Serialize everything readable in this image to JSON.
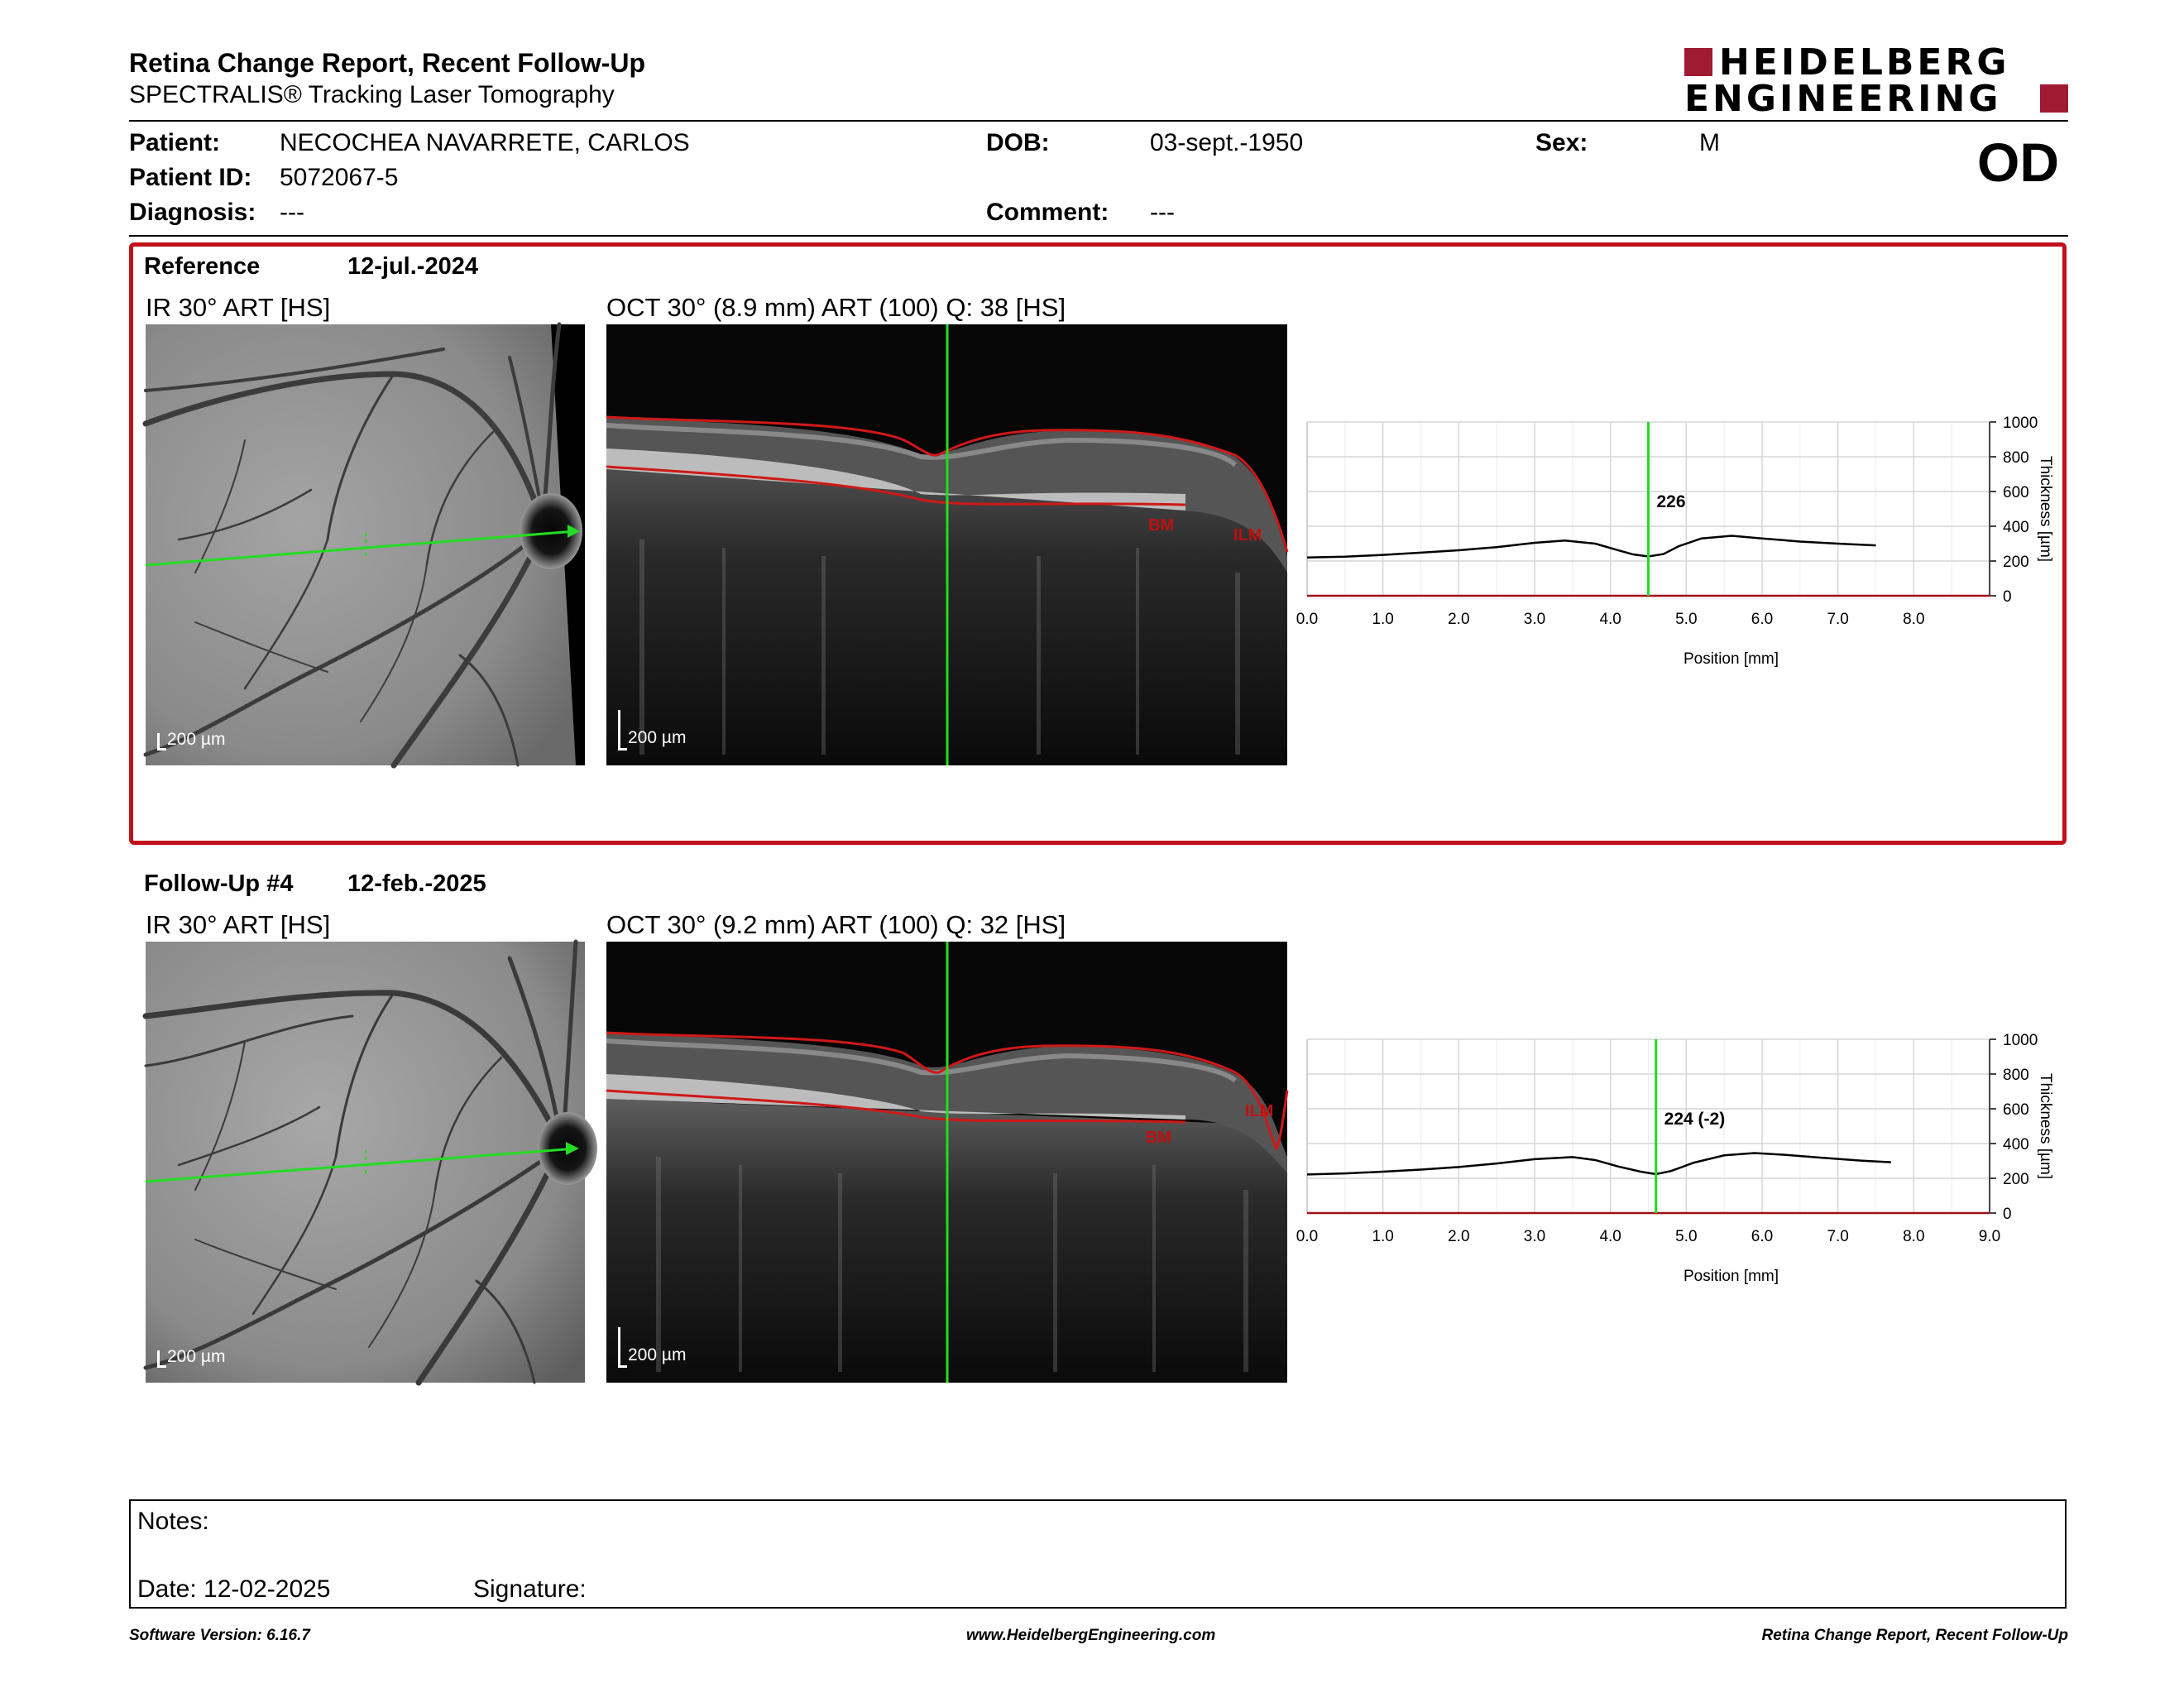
{
  "header": {
    "title": "Retina Change Report, Recent Follow-Up",
    "subtitle": "SPECTRALIS® Tracking Laser Tomography",
    "logo_line1": "HEIDELBERG",
    "logo_line2": "ENGINEERING",
    "eye": "OD"
  },
  "patient": {
    "name_label": "Patient:",
    "name": "NECOCHEA NAVARRETE, CARLOS",
    "id_label": "Patient ID:",
    "id": "5072067-5",
    "diagnosis_label": "Diagnosis:",
    "diagnosis": "---",
    "dob_label": "DOB:",
    "dob": "03-sept.-1950",
    "comment_label": "Comment:",
    "comment": "---",
    "sex_label": "Sex:",
    "sex": "M"
  },
  "reference": {
    "label": "Reference",
    "date": "12-jul.-2024",
    "ir_title": "IR 30° ART [HS]",
    "oct_title": "OCT 30° (8.9 mm) ART (100) Q: 38 [HS]",
    "scale_label": "200 µm",
    "bm_label": "BM",
    "ilm_label": "ILM"
  },
  "followup": {
    "label": "Follow-Up #4",
    "date": "12-feb.-2025",
    "ir_title": "IR 30° ART [HS]",
    "oct_title": "OCT 30° (9.2 mm) ART (100) Q: 32 [HS]",
    "scale_label": "200 µm",
    "bm_label": "BM",
    "ilm_label": "ILM"
  },
  "colors": {
    "brand": "#a01a32",
    "frame_red": "#c0101a",
    "scan_green": "#22dd22",
    "segmentation_red": "#d01818"
  },
  "chart_data": [
    {
      "type": "line",
      "title": "",
      "xlabel": "Position [mm]",
      "ylabel": "Thickness [µm]",
      "xlim": [
        0,
        9.0
      ],
      "ylim": [
        0,
        1000
      ],
      "x_ticks": [
        "0.0",
        "1.0",
        "2.0",
        "3.0",
        "4.0",
        "5.0",
        "6.0",
        "7.0",
        "8.0"
      ],
      "y_ticks": [
        "0",
        "200",
        "400",
        "600",
        "800",
        "1000"
      ],
      "grid": true,
      "marker_x": 4.5,
      "marker_label": "226",
      "series": [
        {
          "x": [
            0,
            0.5,
            1.0,
            1.5,
            2.0,
            2.5,
            3.0,
            3.4,
            3.8,
            4.1,
            4.3,
            4.5,
            4.7,
            4.9,
            5.2,
            5.6,
            6.0,
            6.5,
            7.0,
            7.5
          ],
          "values": [
            220,
            225,
            235,
            248,
            262,
            280,
            305,
            318,
            300,
            262,
            238,
            226,
            240,
            285,
            330,
            345,
            330,
            312,
            300,
            290
          ]
        }
      ]
    },
    {
      "type": "line",
      "title": "",
      "xlabel": "Position [mm]",
      "ylabel": "Thickness [µm]",
      "xlim": [
        0,
        9.0
      ],
      "ylim": [
        0,
        1000
      ],
      "x_ticks": [
        "0.0",
        "1.0",
        "2.0",
        "3.0",
        "4.0",
        "5.0",
        "6.0",
        "7.0",
        "8.0",
        "9.0"
      ],
      "y_ticks": [
        "0",
        "200",
        "400",
        "600",
        "800",
        "1000"
      ],
      "grid": true,
      "marker_x": 4.6,
      "marker_label": "224 (-2)",
      "series": [
        {
          "x": [
            0,
            0.5,
            1.0,
            1.5,
            2.0,
            2.5,
            3.0,
            3.5,
            3.8,
            4.1,
            4.4,
            4.6,
            4.8,
            5.1,
            5.5,
            5.9,
            6.3,
            6.8,
            7.3,
            7.7
          ],
          "values": [
            222,
            228,
            238,
            250,
            265,
            285,
            310,
            322,
            305,
            268,
            238,
            224,
            242,
            290,
            332,
            345,
            335,
            318,
            302,
            292
          ]
        }
      ]
    }
  ],
  "notes": {
    "label": "Notes:",
    "date_label": "Date: 12-02-2025",
    "signature_label": "Signature:"
  },
  "footer": {
    "left": "Software Version: 6.16.7",
    "center": "www.HeidelbergEngineering.com",
    "right": "Retina Change Report, Recent Follow-Up"
  }
}
